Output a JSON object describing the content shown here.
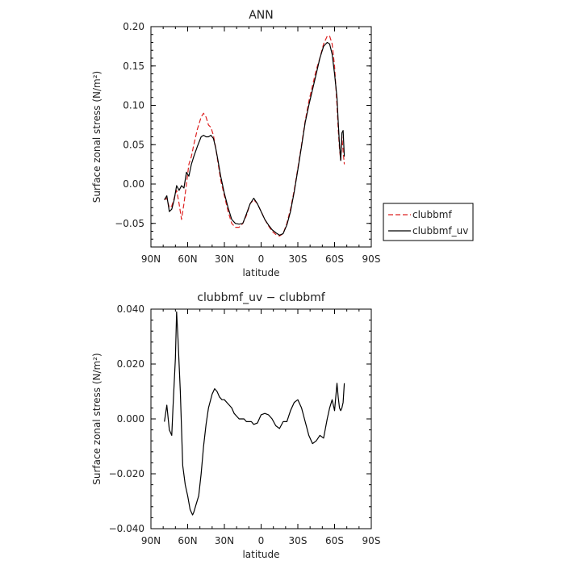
{
  "chart_data": [
    {
      "type": "line",
      "title": "ANN",
      "xlabel": "latitude",
      "ylabel": "Surface zonal stress (N/m²)",
      "xlim": [
        90,
        -90
      ],
      "ylim": [
        -0.08,
        0.2
      ],
      "xticks": [
        {
          "value": 90,
          "label": "90N"
        },
        {
          "value": 60,
          "label": "60N"
        },
        {
          "value": 30,
          "label": "30N"
        },
        {
          "value": 0,
          "label": "0"
        },
        {
          "value": -30,
          "label": "30S"
        },
        {
          "value": -60,
          "label": "60S"
        },
        {
          "value": -90,
          "label": "90S"
        }
      ],
      "yticks": [
        {
          "value": 0.2,
          "label": "0.20"
        },
        {
          "value": 0.15,
          "label": "0.15"
        },
        {
          "value": 0.1,
          "label": "0.10"
        },
        {
          "value": 0.05,
          "label": "0.05"
        },
        {
          "value": 0.0,
          "label": "0.00"
        },
        {
          "value": -0.05,
          "label": "−0.05"
        }
      ],
      "grid": false,
      "legend": "right",
      "series": [
        {
          "name": "clubbmf",
          "color": "#dd2222",
          "dash": "dashed",
          "x": [
            79,
            77,
            75,
            73,
            71,
            69,
            67,
            65,
            63,
            61,
            59,
            57,
            55,
            52,
            49,
            47,
            45,
            43,
            41,
            39,
            37,
            35,
            33,
            30,
            27,
            24,
            21,
            18,
            15,
            12,
            9,
            6,
            3,
            0,
            -3,
            -6,
            -9,
            -12,
            -15,
            -18,
            -21,
            -24,
            -27,
            -30,
            -33,
            -36,
            -39,
            -42,
            -45,
            -48,
            -51,
            -54,
            -56,
            -58,
            -60,
            -62,
            -63,
            -64,
            -65,
            -66,
            -67,
            -68
          ],
          "y": [
            -0.02,
            -0.018,
            -0.03,
            -0.028,
            -0.018,
            -0.008,
            -0.025,
            -0.045,
            -0.025,
            0.0,
            0.025,
            0.035,
            0.05,
            0.07,
            0.085,
            0.09,
            0.085,
            0.075,
            0.072,
            0.062,
            0.045,
            0.025,
            0.005,
            -0.015,
            -0.035,
            -0.05,
            -0.055,
            -0.055,
            -0.05,
            -0.04,
            -0.025,
            -0.02,
            -0.025,
            -0.035,
            -0.045,
            -0.053,
            -0.06,
            -0.064,
            -0.066,
            -0.063,
            -0.05,
            -0.032,
            -0.008,
            0.02,
            0.05,
            0.08,
            0.105,
            0.125,
            0.145,
            0.16,
            0.178,
            0.188,
            0.188,
            0.178,
            0.15,
            0.1,
            0.07,
            0.045,
            0.03,
            0.06,
            0.042,
            0.025
          ]
        },
        {
          "name": "clubbmf_uv",
          "color": "#000000",
          "dash": "solid",
          "x": [
            79,
            77,
            75,
            73,
            71,
            69,
            67,
            65,
            63,
            61,
            59,
            57,
            55,
            52,
            49,
            47,
            45,
            43,
            41,
            39,
            37,
            35,
            33,
            30,
            27,
            24,
            21,
            18,
            15,
            12,
            9,
            6,
            3,
            0,
            -3,
            -6,
            -9,
            -12,
            -15,
            -18,
            -21,
            -24,
            -27,
            -30,
            -33,
            -36,
            -39,
            -42,
            -45,
            -48,
            -51,
            -54,
            -56,
            -58,
            -60,
            -62,
            -63,
            -64,
            -65,
            -66,
            -67,
            -68
          ],
          "y": [
            -0.02,
            -0.015,
            -0.035,
            -0.032,
            -0.02,
            -0.002,
            -0.008,
            -0.002,
            -0.005,
            0.015,
            0.01,
            0.025,
            0.035,
            0.048,
            0.06,
            0.062,
            0.06,
            0.06,
            0.062,
            0.058,
            0.045,
            0.028,
            0.01,
            -0.012,
            -0.03,
            -0.045,
            -0.05,
            -0.051,
            -0.05,
            -0.038,
            -0.025,
            -0.018,
            -0.025,
            -0.035,
            -0.045,
            -0.052,
            -0.058,
            -0.062,
            -0.065,
            -0.063,
            -0.052,
            -0.035,
            -0.01,
            0.018,
            0.048,
            0.078,
            0.1,
            0.12,
            0.14,
            0.16,
            0.175,
            0.18,
            0.178,
            0.165,
            0.14,
            0.11,
            0.08,
            0.05,
            0.03,
            0.065,
            0.068,
            0.035
          ]
        }
      ]
    },
    {
      "type": "line",
      "title": "clubbmf_uv − clubbmf",
      "xlabel": "latitude",
      "ylabel": "Surface zonal stress (N/m²)",
      "xlim": [
        90,
        -90
      ],
      "ylim": [
        -0.04,
        0.04
      ],
      "xticks": [
        {
          "value": 90,
          "label": "90N"
        },
        {
          "value": 60,
          "label": "60N"
        },
        {
          "value": 30,
          "label": "30N"
        },
        {
          "value": 0,
          "label": "0"
        },
        {
          "value": -30,
          "label": "30S"
        },
        {
          "value": -60,
          "label": "60S"
        },
        {
          "value": -90,
          "label": "90S"
        }
      ],
      "yticks": [
        {
          "value": 0.04,
          "label": "0.040"
        },
        {
          "value": 0.02,
          "label": "0.020"
        },
        {
          "value": 0.0,
          "label": "0.000"
        },
        {
          "value": -0.02,
          "label": "−0.020"
        },
        {
          "value": -0.04,
          "label": "−0.040"
        }
      ],
      "grid": false,
      "series": [
        {
          "color": "#000000",
          "dash": "solid",
          "x": [
            79,
            77,
            75,
            73,
            72,
            70,
            69,
            68,
            66,
            64,
            62,
            60,
            58,
            56,
            55,
            53,
            51,
            49,
            47,
            45,
            43,
            40,
            38,
            36,
            34,
            32,
            30,
            28,
            26,
            24,
            22,
            20,
            18,
            16,
            14,
            12,
            10,
            8,
            6,
            3,
            0,
            -3,
            -6,
            -9,
            -12,
            -15,
            -18,
            -21,
            -24,
            -27,
            -30,
            -33,
            -36,
            -39,
            -42,
            -45,
            -48,
            -51,
            -54,
            -56,
            -58,
            -60,
            -62,
            -63,
            -64,
            -65,
            -66,
            -67,
            -68
          ],
          "y": [
            -0.001,
            0.005,
            -0.004,
            -0.006,
            0.004,
            0.022,
            0.039,
            0.03,
            0.01,
            -0.017,
            -0.024,
            -0.028,
            -0.033,
            -0.035,
            -0.034,
            -0.031,
            -0.028,
            -0.02,
            -0.01,
            -0.002,
            0.004,
            0.009,
            0.011,
            0.01,
            0.008,
            0.007,
            0.007,
            0.006,
            0.005,
            0.004,
            0.002,
            0.001,
            0.0,
            0.0,
            0.0,
            -0.001,
            -0.001,
            -0.001,
            -0.002,
            -0.0015,
            0.0015,
            0.002,
            0.0015,
            0.0,
            -0.0025,
            -0.0035,
            -0.001,
            -0.001,
            0.003,
            0.006,
            0.007,
            0.004,
            -0.001,
            -0.006,
            -0.009,
            -0.008,
            -0.006,
            -0.007,
            0.0,
            0.004,
            0.007,
            0.003,
            0.013,
            0.008,
            0.004,
            0.003,
            0.004,
            0.006,
            0.013
          ]
        }
      ]
    }
  ]
}
